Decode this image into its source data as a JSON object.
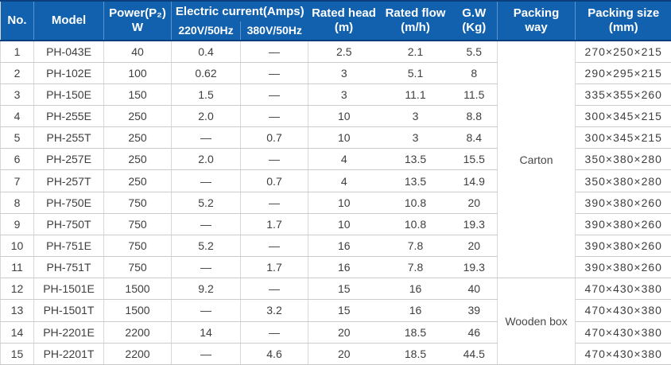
{
  "colors": {
    "header_background": "#1261ae",
    "header_text": "#ffffff",
    "header_dark_line": "#0b3e7d",
    "header_separator": "#5c95ce",
    "body_text": "#3e3e3e",
    "row_border": "#cbcbcb"
  },
  "table": {
    "header": {
      "no": "No.",
      "model": "Model",
      "power_line1": "Power(P₂)",
      "power_line2": "W",
      "electric_current": "Electric current(Amps)",
      "sub_220": "220V/50Hz",
      "sub_380": "380V/50Hz",
      "rated_head_line1": "Rated head",
      "rated_head_line2": "(m)",
      "rated_flow_line1": "Rated flow",
      "rated_flow_line2": "(m/h)",
      "gw_line1": "G.W",
      "gw_line2": "(Kg)",
      "packing_way_line1": "Packing",
      "packing_way_line2": "way",
      "packing_size_line1": "Packing size",
      "packing_size_line2": "(mm)"
    },
    "packing_way_groups": [
      {
        "label": "Carton",
        "rows": 11
      },
      {
        "label": "Wooden box",
        "rows": 4
      }
    ],
    "rows": [
      {
        "no": "1",
        "model": "PH-043E",
        "power": "40",
        "v220": "0.4",
        "v380": "—",
        "head": "2.5",
        "flow": "2.1",
        "gw": "5.5",
        "size": "270×250×215"
      },
      {
        "no": "2",
        "model": "PH-102E",
        "power": "100",
        "v220": "0.62",
        "v380": "—",
        "head": "3",
        "flow": "5.1",
        "gw": "8",
        "size": "290×295×215"
      },
      {
        "no": "3",
        "model": "PH-150E",
        "power": "150",
        "v220": "1.5",
        "v380": "—",
        "head": "3",
        "flow": "11.1",
        "gw": "11.5",
        "size": "335×355×260"
      },
      {
        "no": "4",
        "model": "PH-255E",
        "power": "250",
        "v220": "2.0",
        "v380": "—",
        "head": "10",
        "flow": "3",
        "gw": "8.8",
        "size": "300×345×215"
      },
      {
        "no": "5",
        "model": "PH-255T",
        "power": "250",
        "v220": "—",
        "v380": "0.7",
        "head": "10",
        "flow": "3",
        "gw": "8.4",
        "size": "300×345×215"
      },
      {
        "no": "6",
        "model": "PH-257E",
        "power": "250",
        "v220": "2.0",
        "v380": "—",
        "head": "4",
        "flow": "13.5",
        "gw": "15.5",
        "size": "350×380×280"
      },
      {
        "no": "7",
        "model": "PH-257T",
        "power": "250",
        "v220": "—",
        "v380": "0.7",
        "head": "4",
        "flow": "13.5",
        "gw": "14.9",
        "size": "350×380×280"
      },
      {
        "no": "8",
        "model": "PH-750E",
        "power": "750",
        "v220": "5.2",
        "v380": "—",
        "head": "10",
        "flow": "10.8",
        "gw": "20",
        "size": "390×380×260"
      },
      {
        "no": "9",
        "model": "PH-750T",
        "power": "750",
        "v220": "—",
        "v380": "1.7",
        "head": "10",
        "flow": "10.8",
        "gw": "19.3",
        "size": "390×380×260"
      },
      {
        "no": "10",
        "model": "PH-751E",
        "power": "750",
        "v220": "5.2",
        "v380": "—",
        "head": "16",
        "flow": "7.8",
        "gw": "20",
        "size": "390×380×260"
      },
      {
        "no": "11",
        "model": "PH-751T",
        "power": "750",
        "v220": "—",
        "v380": "1.7",
        "head": "16",
        "flow": "7.8",
        "gw": "19.3",
        "size": "390×380×260"
      },
      {
        "no": "12",
        "model": "PH-1501E",
        "power": "1500",
        "v220": "9.2",
        "v380": "—",
        "head": "15",
        "flow": "16",
        "gw": "40",
        "size": "470×430×380"
      },
      {
        "no": "13",
        "model": "PH-1501T",
        "power": "1500",
        "v220": "—",
        "v380": "3.2",
        "head": "15",
        "flow": "16",
        "gw": "39",
        "size": "470×430×380"
      },
      {
        "no": "14",
        "model": "PH-2201E",
        "power": "2200",
        "v220": "14",
        "v380": "—",
        "head": "20",
        "flow": "18.5",
        "gw": "46",
        "size": "470×430×380"
      },
      {
        "no": "15",
        "model": "PH-2201T",
        "power": "2200",
        "v220": "—",
        "v380": "4.6",
        "head": "20",
        "flow": "18.5",
        "gw": "44.5",
        "size": "470×430×380"
      }
    ]
  }
}
